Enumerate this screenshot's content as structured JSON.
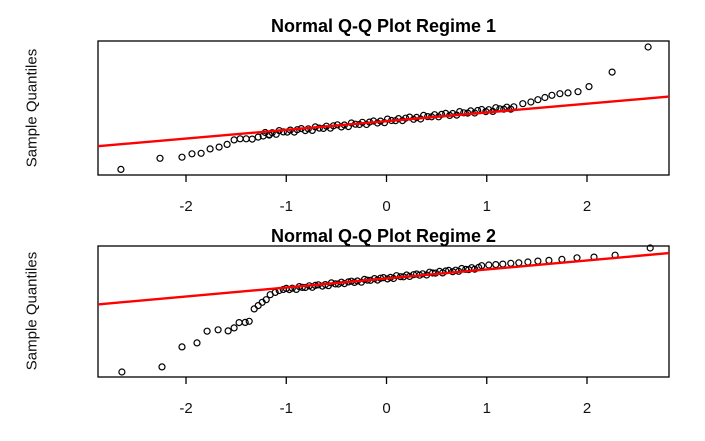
{
  "figure": {
    "background": "#ffffff",
    "point_color": "#000000",
    "reference_line_color": "#ff0000",
    "axis_color": "#000000"
  },
  "chart_data": [
    {
      "type": "scatter",
      "title": "Normal Q-Q Plot Regime 1",
      "xlabel": "",
      "ylabel": "Sample Quantiles",
      "x_ticks": [
        -2,
        -1,
        0,
        1,
        2
      ],
      "x_tick_labels": [
        "-2",
        "-1",
        "0",
        "1",
        "2"
      ],
      "y_ticks": [],
      "xlim": [
        -2.878,
        2.818
      ],
      "ylim": [
        0,
        1
      ],
      "grid": false,
      "legend": null,
      "marker": "open-circle",
      "reference_line": {
        "x": [
          -2.878,
          2.818
        ],
        "y": [
          0.215,
          0.585
        ],
        "color": "#ff0000"
      },
      "points": [
        [
          -2.65,
          0.042
        ],
        [
          -2.26,
          0.125
        ],
        [
          -2.04,
          0.133
        ],
        [
          -1.94,
          0.158
        ],
        [
          -1.85,
          0.162
        ],
        [
          -1.76,
          0.195
        ],
        [
          -1.67,
          0.208
        ],
        [
          -1.59,
          0.228
        ],
        [
          -1.52,
          0.262
        ],
        [
          -1.46,
          0.27
        ],
        [
          -1.4,
          0.27
        ],
        [
          -1.34,
          0.268
        ],
        [
          -1.28,
          0.283
        ],
        [
          -1.23,
          0.291
        ],
        [
          -1.17,
          0.298
        ],
        [
          -1.21,
          0.317
        ],
        [
          -1.17,
          0.302
        ],
        [
          -1.14,
          0.316
        ],
        [
          -1.1,
          0.304
        ],
        [
          -1.07,
          0.331
        ],
        [
          -1.03,
          0.322
        ],
        [
          -0.99,
          0.32
        ],
        [
          -0.96,
          0.335
        ],
        [
          -0.92,
          0.32
        ],
        [
          -0.89,
          0.338
        ],
        [
          -0.85,
          0.346
        ],
        [
          -0.81,
          0.331
        ],
        [
          -0.78,
          0.345
        ],
        [
          -0.74,
          0.333
        ],
        [
          -0.71,
          0.359
        ],
        [
          -0.67,
          0.35
        ],
        [
          -0.63,
          0.348
        ],
        [
          -0.6,
          0.364
        ],
        [
          -0.56,
          0.349
        ],
        [
          -0.53,
          0.367
        ],
        [
          -0.49,
          0.375
        ],
        [
          -0.45,
          0.359
        ],
        [
          -0.42,
          0.373
        ],
        [
          -0.38,
          0.361
        ],
        [
          -0.35,
          0.388
        ],
        [
          -0.31,
          0.379
        ],
        [
          -0.27,
          0.377
        ],
        [
          -0.24,
          0.393
        ],
        [
          -0.2,
          0.377
        ],
        [
          -0.17,
          0.395
        ],
        [
          -0.13,
          0.403
        ],
        [
          -0.09,
          0.388
        ],
        [
          -0.06,
          0.402
        ],
        [
          -0.02,
          0.39
        ],
        [
          0.01,
          0.417
        ],
        [
          0.05,
          0.407
        ],
        [
          0.09,
          0.405
        ],
        [
          0.12,
          0.421
        ],
        [
          0.16,
          0.406
        ],
        [
          0.19,
          0.424
        ],
        [
          0.23,
          0.432
        ],
        [
          0.27,
          0.416
        ],
        [
          0.3,
          0.43
        ],
        [
          0.34,
          0.418
        ],
        [
          0.37,
          0.445
        ],
        [
          0.41,
          0.436
        ],
        [
          0.45,
          0.434
        ],
        [
          0.48,
          0.45
        ],
        [
          0.52,
          0.434
        ],
        [
          0.55,
          0.452
        ],
        [
          0.59,
          0.46
        ],
        [
          0.63,
          0.445
        ],
        [
          0.66,
          0.459
        ],
        [
          0.7,
          0.447
        ],
        [
          0.73,
          0.473
        ],
        [
          0.77,
          0.464
        ],
        [
          0.81,
          0.462
        ],
        [
          0.84,
          0.478
        ],
        [
          0.88,
          0.463
        ],
        [
          0.91,
          0.481
        ],
        [
          0.95,
          0.489
        ],
        [
          0.99,
          0.473
        ],
        [
          1.02,
          0.487
        ],
        [
          1.06,
          0.475
        ],
        [
          1.09,
          0.502
        ],
        [
          1.13,
          0.493
        ],
        [
          1.17,
          0.491
        ],
        [
          1.2,
          0.506
        ],
        [
          1.24,
          0.491
        ],
        [
          1.27,
          0.509
        ],
        [
          1.36,
          0.532
        ],
        [
          1.44,
          0.545
        ],
        [
          1.51,
          0.562
        ],
        [
          1.58,
          0.578
        ],
        [
          1.65,
          0.595
        ],
        [
          1.73,
          0.607
        ],
        [
          1.81,
          0.613
        ],
        [
          1.91,
          0.622
        ],
        [
          2.02,
          0.66
        ],
        [
          2.25,
          0.768
        ],
        [
          2.61,
          0.955
        ]
      ]
    },
    {
      "type": "scatter",
      "title": "Normal Q-Q Plot Regime 2",
      "xlabel": "",
      "ylabel": "Sample Quantiles",
      "x_ticks": [
        -2,
        -1,
        0,
        1,
        2
      ],
      "x_tick_labels": [
        "-2",
        "-1",
        "0",
        "1",
        "2"
      ],
      "y_ticks": [],
      "xlim": [
        -2.878,
        2.818
      ],
      "ylim": [
        0,
        1
      ],
      "grid": false,
      "legend": null,
      "marker": "open-circle",
      "reference_line": {
        "x": [
          -2.878,
          2.818
        ],
        "y": [
          0.554,
          0.946
        ],
        "color": "#ff0000"
      },
      "points": [
        [
          -2.64,
          0.038
        ],
        [
          -2.24,
          0.077
        ],
        [
          -2.04,
          0.23
        ],
        [
          -1.89,
          0.26
        ],
        [
          -1.79,
          0.35
        ],
        [
          -1.68,
          0.36
        ],
        [
          -1.58,
          0.352
        ],
        [
          -1.52,
          0.375
        ],
        [
          -1.47,
          0.415
        ],
        [
          -1.41,
          0.417
        ],
        [
          -1.37,
          0.425
        ],
        [
          -1.32,
          0.52
        ],
        [
          -1.28,
          0.545
        ],
        [
          -1.24,
          0.57
        ],
        [
          -1.2,
          0.59
        ],
        [
          -1.16,
          0.628
        ],
        [
          -1.11,
          0.646
        ],
        [
          -1.07,
          0.66
        ],
        [
          -1.03,
          0.668
        ],
        [
          -1.0,
          0.676
        ],
        [
          -0.97,
          0.667
        ],
        [
          -0.94,
          0.678
        ],
        [
          -0.9,
          0.669
        ],
        [
          -0.87,
          0.69
        ],
        [
          -0.84,
          0.684
        ],
        [
          -0.81,
          0.683
        ],
        [
          -0.77,
          0.696
        ],
        [
          -0.74,
          0.685
        ],
        [
          -0.71,
          0.699
        ],
        [
          -0.68,
          0.704
        ],
        [
          -0.64,
          0.694
        ],
        [
          -0.61,
          0.705
        ],
        [
          -0.58,
          0.697
        ],
        [
          -0.55,
          0.718
        ],
        [
          -0.51,
          0.711
        ],
        [
          -0.48,
          0.71
        ],
        [
          -0.45,
          0.724
        ],
        [
          -0.42,
          0.713
        ],
        [
          -0.38,
          0.726
        ],
        [
          -0.35,
          0.731
        ],
        [
          -0.32,
          0.722
        ],
        [
          -0.29,
          0.733
        ],
        [
          -0.25,
          0.724
        ],
        [
          -0.22,
          0.745
        ],
        [
          -0.19,
          0.739
        ],
        [
          -0.16,
          0.738
        ],
        [
          -0.12,
          0.751
        ],
        [
          -0.09,
          0.74
        ],
        [
          -0.06,
          0.754
        ],
        [
          -0.03,
          0.759
        ],
        [
          0.01,
          0.749
        ],
        [
          0.04,
          0.76
        ],
        [
          0.07,
          0.752
        ],
        [
          0.1,
          0.773
        ],
        [
          0.14,
          0.766
        ],
        [
          0.17,
          0.765
        ],
        [
          0.2,
          0.779
        ],
        [
          0.23,
          0.768
        ],
        [
          0.27,
          0.781
        ],
        [
          0.3,
          0.786
        ],
        [
          0.33,
          0.777
        ],
        [
          0.36,
          0.788
        ],
        [
          0.4,
          0.779
        ],
        [
          0.43,
          0.8
        ],
        [
          0.46,
          0.794
        ],
        [
          0.49,
          0.793
        ],
        [
          0.53,
          0.806
        ],
        [
          0.56,
          0.795
        ],
        [
          0.59,
          0.809
        ],
        [
          0.62,
          0.814
        ],
        [
          0.66,
          0.804
        ],
        [
          0.69,
          0.815
        ],
        [
          0.72,
          0.807
        ],
        [
          0.75,
          0.828
        ],
        [
          0.79,
          0.821
        ],
        [
          0.82,
          0.82
        ],
        [
          0.85,
          0.834
        ],
        [
          0.88,
          0.823
        ],
        [
          0.92,
          0.837
        ],
        [
          0.95,
          0.85
        ],
        [
          1.02,
          0.855
        ],
        [
          1.09,
          0.858
        ],
        [
          1.16,
          0.862
        ],
        [
          1.24,
          0.868
        ],
        [
          1.32,
          0.872
        ],
        [
          1.41,
          0.878
        ],
        [
          1.51,
          0.885
        ],
        [
          1.62,
          0.89
        ],
        [
          1.75,
          0.898
        ],
        [
          1.9,
          0.91
        ],
        [
          2.07,
          0.915
        ],
        [
          2.28,
          0.93
        ],
        [
          2.63,
          0.985
        ]
      ]
    }
  ]
}
